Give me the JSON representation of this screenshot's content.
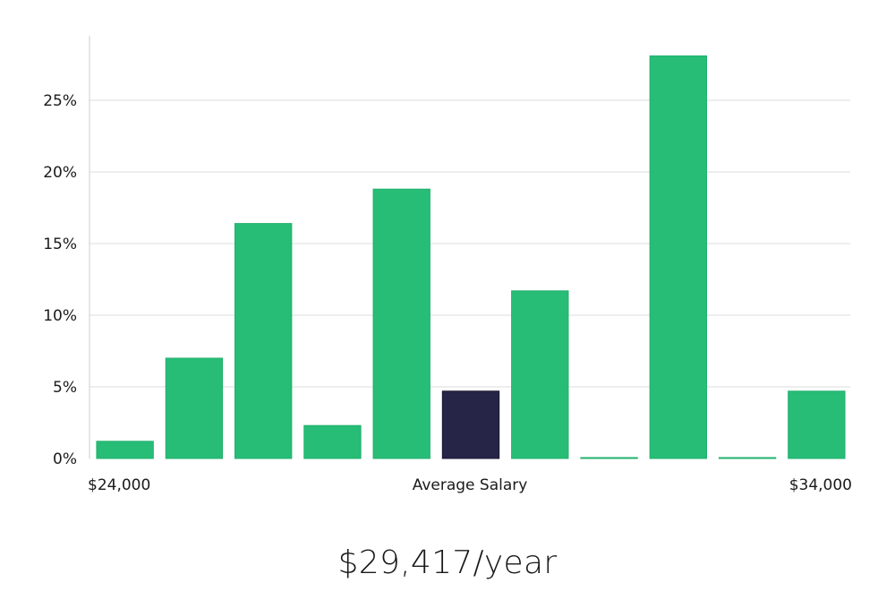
{
  "chart_data": {
    "type": "bar",
    "title": "",
    "xlabel": "Average Salary",
    "ylabel": "",
    "x_range_labels": {
      "min": "$24,000",
      "max": "$34,000"
    },
    "yticks": [
      "0%",
      "5%",
      "10%",
      "15%",
      "20%",
      "25%"
    ],
    "ytick_values": [
      0,
      5,
      10,
      15,
      20,
      25
    ],
    "ylim": [
      0,
      29.5
    ],
    "grid": true,
    "values": [
      1.2,
      7.0,
      16.4,
      2.3,
      18.8,
      4.7,
      11.7,
      0.05,
      28.1,
      0.05,
      4.7
    ],
    "highlight_index": 5,
    "colors": {
      "bar": "#27bd77",
      "highlight": "#262447",
      "grid": "#dddddd",
      "axis": "#cccccc"
    }
  },
  "summary": {
    "salary": "$29,417/year"
  }
}
